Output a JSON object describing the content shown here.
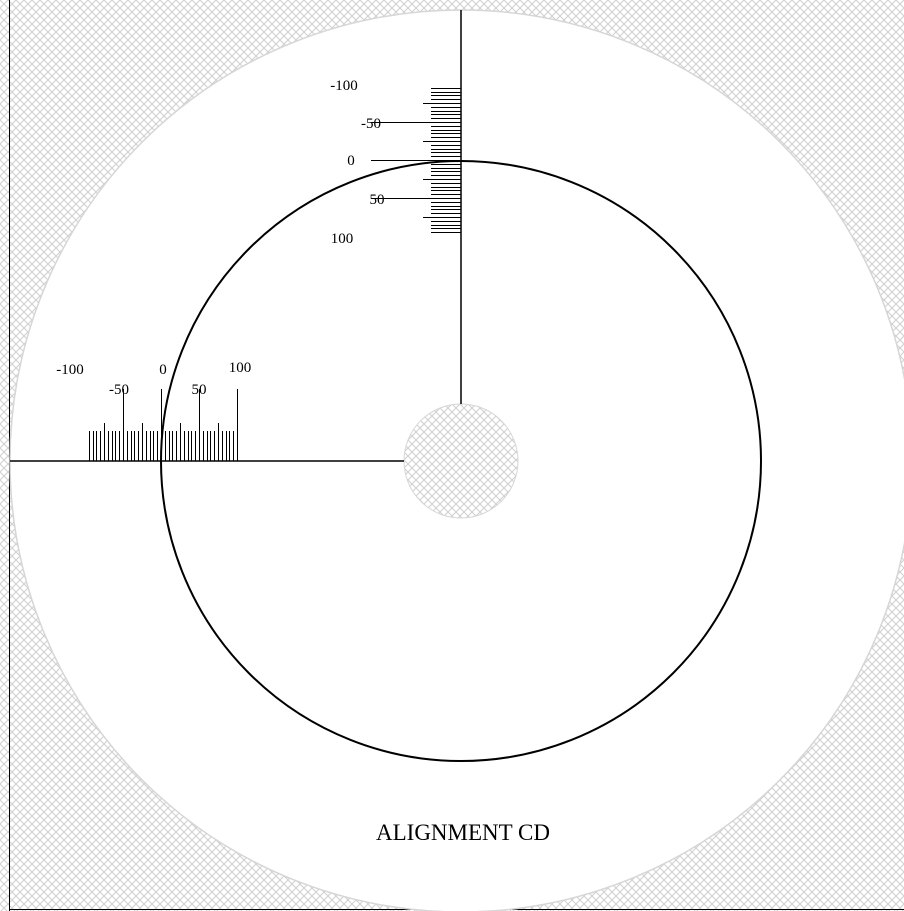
{
  "disc": {
    "title": "ALIGNMENT CD",
    "colors": {
      "hatch": "#cfcfcf",
      "ink": "#000000",
      "disc_fill": "#ffffff",
      "disc_edge": "#d6d6d6"
    }
  },
  "vertical_scale": {
    "labels": [
      "-100",
      "-50",
      "0",
      "50",
      "100"
    ]
  },
  "horizontal_scale": {
    "labels": [
      "-100",
      "-50",
      "0",
      "50",
      "100"
    ]
  }
}
